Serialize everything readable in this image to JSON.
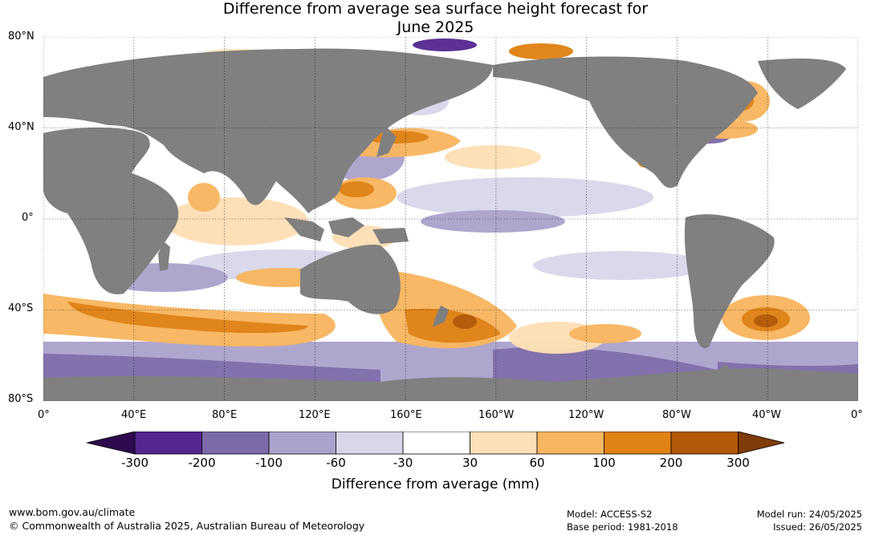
{
  "title": {
    "line1": "Difference from average sea surface height forecast for",
    "line2": "June 2025"
  },
  "lat_labels": [
    "80°N",
    "40°N",
    "0°",
    "40°S",
    "80°S"
  ],
  "lon_labels": [
    "0°",
    "40°E",
    "80°E",
    "120°E",
    "160°E",
    "160°W",
    "120°W",
    "80°W",
    "40°W",
    "0°"
  ],
  "colorbar": {
    "ticks": [
      "-300",
      "-200",
      "-100",
      "-60",
      "-30",
      "30",
      "60",
      "100",
      "200",
      "300"
    ],
    "colors": [
      "#2d0a4e",
      "#54278f",
      "#7c6aa8",
      "#aba2cc",
      "#d8d7ea",
      "#ffffff",
      "#fde0b6",
      "#f8b661",
      "#e08214",
      "#b35806",
      "#7f3b08"
    ],
    "label": "Difference from average (mm)"
  },
  "footer": {
    "website": "www.bom.gov.au/climate",
    "copyright": "© Commonwealth of Australia 2025, Australian Bureau of Meteorology",
    "model": "Model: ACCESS-S2",
    "base_period": "Base period: 1981-2018",
    "model_run": "Model run: 24/05/2025",
    "issued": "Issued: 26/05/2025"
  }
}
